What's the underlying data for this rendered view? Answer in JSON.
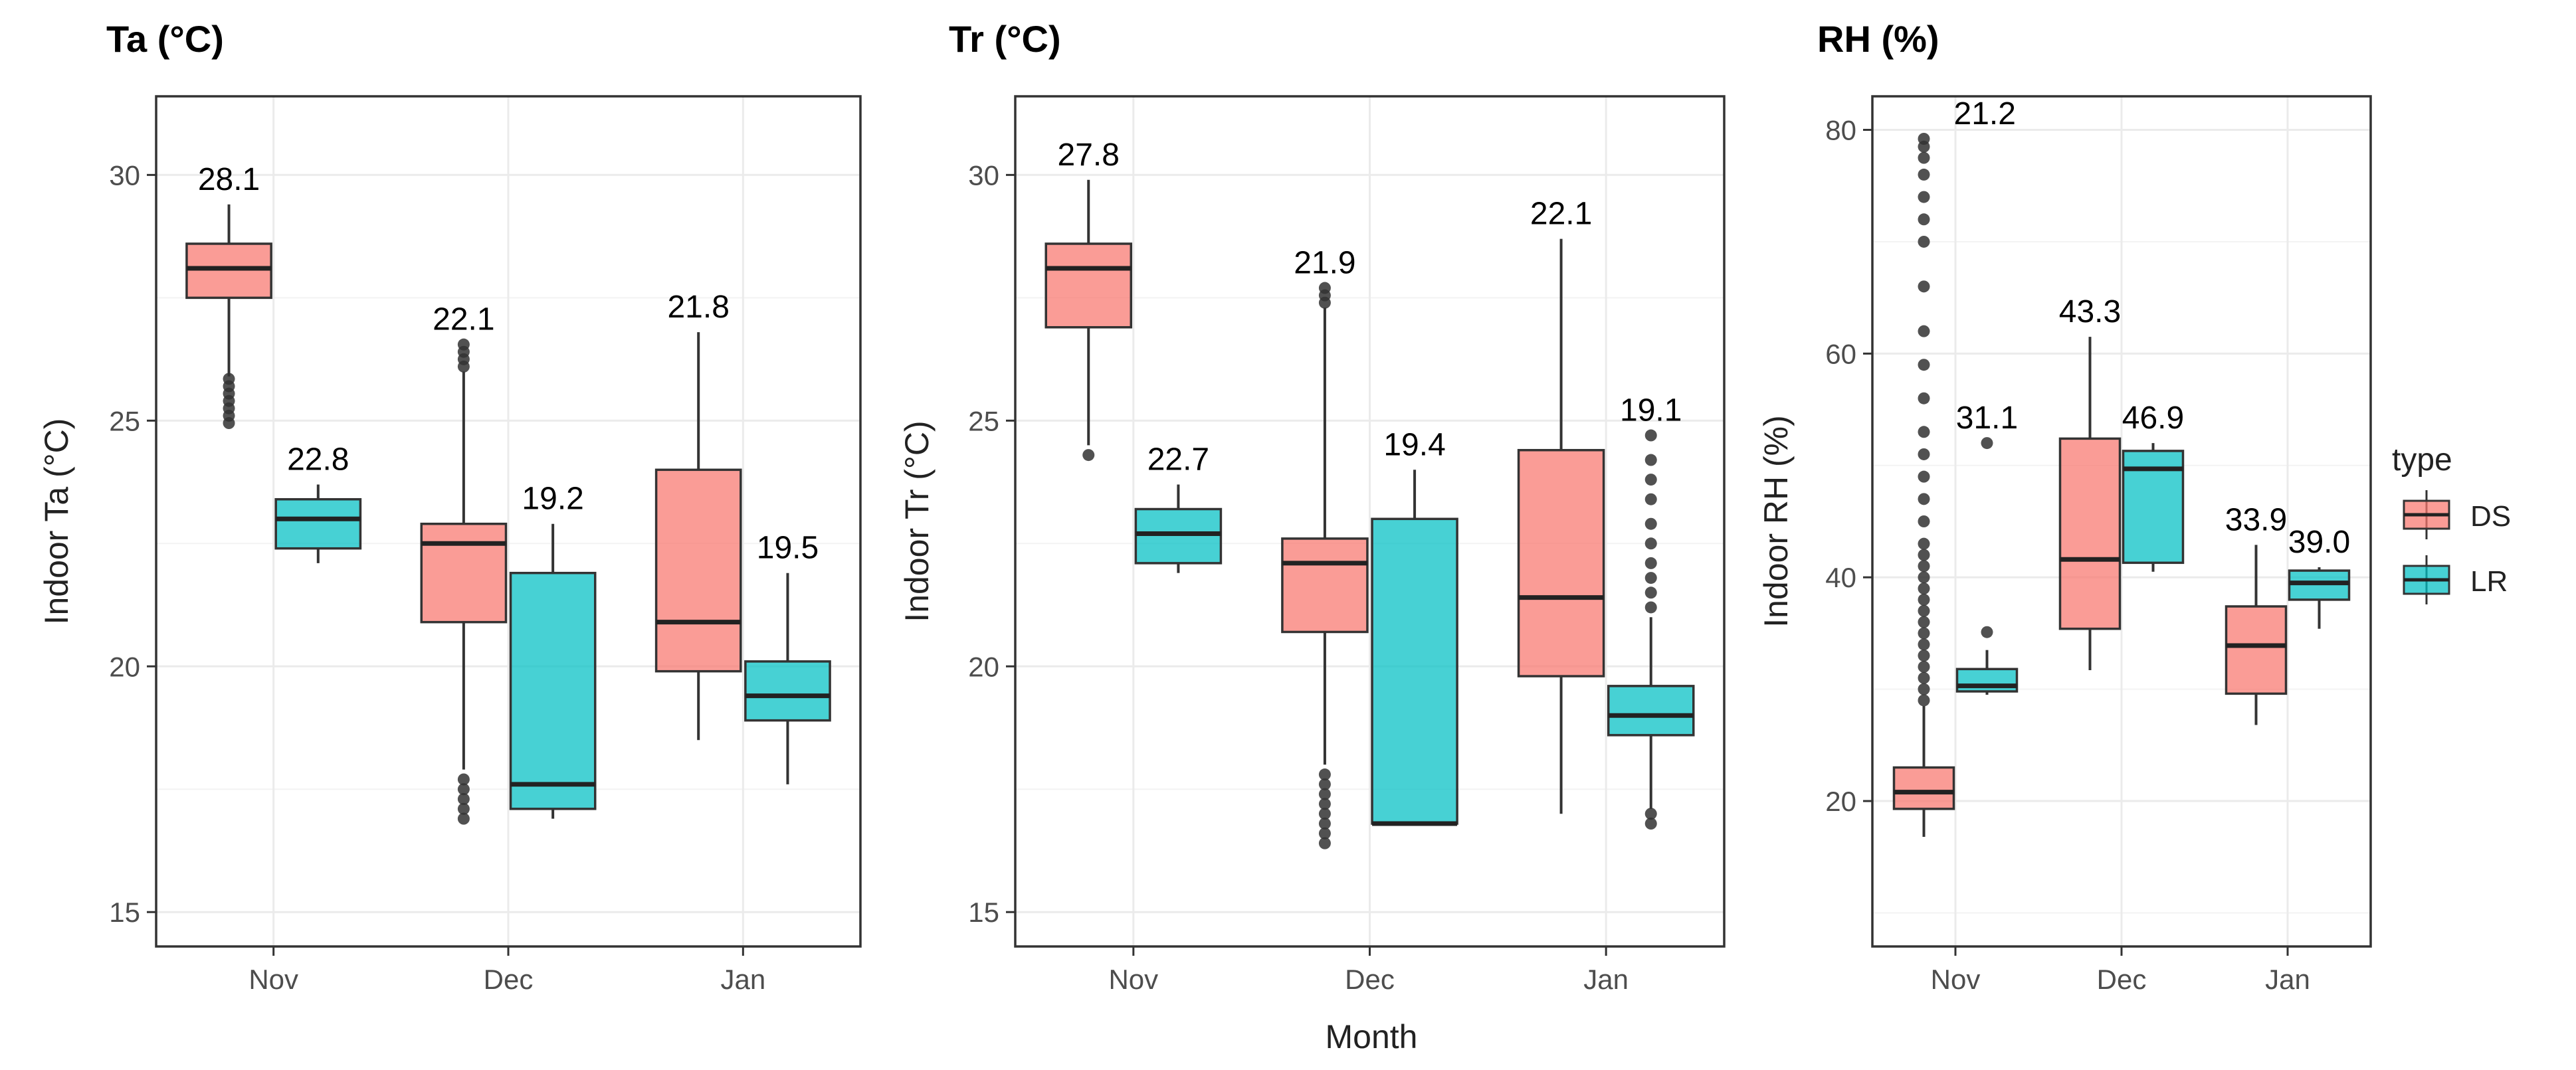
{
  "figure": {
    "shared_xlabel": "Month",
    "legend": {
      "title": "type",
      "position": "right"
    }
  },
  "chart_data": [
    {
      "type": "box",
      "title": "Ta (°C)",
      "xlabel": "",
      "ylabel": "Indoor Ta (°C)",
      "categories": [
        "Nov",
        "Dec",
        "Jan"
      ],
      "ylim": [
        14.3,
        31.6
      ],
      "yticks": [
        15,
        20,
        25,
        30
      ],
      "grid": true,
      "series": [
        {
          "name": "DS",
          "color": "#F8766D",
          "boxes": [
            {
              "q1": 27.5,
              "median": 28.1,
              "q3": 28.6,
              "whisker_low": 25.9,
              "whisker_high": 29.4,
              "label": "28.1",
              "outliers": [
                25.85,
                25.7,
                25.55,
                25.4,
                25.25,
                25.1,
                24.95
              ]
            },
            {
              "q1": 20.9,
              "median": 22.5,
              "q3": 22.9,
              "whisker_low": 17.9,
              "whisker_high": 26.0,
              "label": "22.1",
              "outliers": [
                26.1,
                26.25,
                26.4,
                26.55,
                17.7,
                17.5,
                17.3,
                17.1,
                16.9
              ]
            },
            {
              "q1": 19.9,
              "median": 20.9,
              "q3": 24.0,
              "whisker_low": 18.5,
              "whisker_high": 26.8,
              "label": "21.8",
              "outliers": []
            }
          ]
        },
        {
          "name": "LR",
          "color": "#00BFC4",
          "boxes": [
            {
              "q1": 22.4,
              "median": 23.0,
              "q3": 23.4,
              "whisker_low": 22.1,
              "whisker_high": 23.7,
              "label": "22.8",
              "outliers": []
            },
            {
              "q1": 17.1,
              "median": 17.6,
              "q3": 21.9,
              "whisker_low": 16.9,
              "whisker_high": 22.9,
              "label": "19.2",
              "outliers": []
            },
            {
              "q1": 18.9,
              "median": 19.4,
              "q3": 20.1,
              "whisker_low": 17.6,
              "whisker_high": 21.9,
              "label": "19.5",
              "outliers": []
            }
          ]
        }
      ]
    },
    {
      "type": "box",
      "title": "Tr (°C)",
      "xlabel": "",
      "ylabel": "Indoor Tr (°C)",
      "categories": [
        "Nov",
        "Dec",
        "Jan"
      ],
      "ylim": [
        14.3,
        31.6
      ],
      "yticks": [
        15,
        20,
        25,
        30
      ],
      "grid": true,
      "series": [
        {
          "name": "DS",
          "color": "#F8766D",
          "boxes": [
            {
              "q1": 26.9,
              "median": 28.1,
              "q3": 28.6,
              "whisker_low": 24.5,
              "whisker_high": 29.9,
              "label": "27.8",
              "outliers": [
                24.3
              ]
            },
            {
              "q1": 20.7,
              "median": 22.1,
              "q3": 22.6,
              "whisker_low": 18.0,
              "whisker_high": 27.3,
              "label": "21.9",
              "outliers": [
                27.4,
                27.55,
                27.7,
                17.8,
                17.6,
                17.4,
                17.2,
                17.0,
                16.8,
                16.6,
                16.4
              ]
            },
            {
              "q1": 19.8,
              "median": 21.4,
              "q3": 24.4,
              "whisker_low": 17.0,
              "whisker_high": 28.7,
              "label": "22.1",
              "outliers": []
            }
          ]
        },
        {
          "name": "LR",
          "color": "#00BFC4",
          "boxes": [
            {
              "q1": 22.1,
              "median": 22.7,
              "q3": 23.2,
              "whisker_low": 21.9,
              "whisker_high": 23.7,
              "label": "22.7",
              "outliers": []
            },
            {
              "q1": 16.8,
              "median": 16.8,
              "q3": 23.0,
              "whisker_low": 16.8,
              "whisker_high": 24.0,
              "label": "19.4",
              "outliers": []
            },
            {
              "q1": 18.6,
              "median": 19.0,
              "q3": 19.6,
              "whisker_low": 17.1,
              "whisker_high": 21.0,
              "label": "19.1",
              "outliers": [
                24.7,
                24.2,
                23.8,
                23.4,
                22.9,
                22.5,
                22.1,
                21.8,
                21.5,
                21.2,
                17.0,
                16.8
              ]
            }
          ]
        }
      ]
    },
    {
      "type": "box",
      "title": "RH (%)",
      "xlabel": "",
      "ylabel": "Indoor RH (%)",
      "categories": [
        "Nov",
        "Dec",
        "Jan"
      ],
      "ylim": [
        7,
        83
      ],
      "yticks": [
        20,
        40,
        60,
        80
      ],
      "grid": true,
      "series": [
        {
          "name": "DS",
          "color": "#F8766D",
          "boxes": [
            {
              "q1": 19.3,
              "median": 20.8,
              "q3": 23.0,
              "whisker_low": 16.8,
              "whisker_high": 28.5,
              "label": "21.2",
              "outliers": [
                29,
                30,
                31,
                32,
                33,
                34,
                35,
                36,
                37,
                38,
                39,
                40,
                41,
                42,
                43,
                45,
                47,
                49,
                51,
                53,
                56,
                59,
                62,
                66,
                70,
                72,
                74,
                76,
                77.5,
                78.5,
                79.2
              ]
            },
            {
              "q1": 35.4,
              "median": 41.6,
              "q3": 52.4,
              "whisker_low": 31.7,
              "whisker_high": 61.5,
              "label": "43.3",
              "outliers": []
            },
            {
              "q1": 29.6,
              "median": 33.9,
              "q3": 37.4,
              "whisker_low": 26.8,
              "whisker_high": 42.9,
              "label": "33.9",
              "outliers": []
            }
          ]
        },
        {
          "name": "LR",
          "color": "#00BFC4",
          "boxes": [
            {
              "q1": 29.8,
              "median": 30.3,
              "q3": 31.8,
              "whisker_low": 29.5,
              "whisker_high": 33.5,
              "label": "31.1",
              "outliers": [
                35.1,
                52.0
              ]
            },
            {
              "q1": 41.3,
              "median": 49.7,
              "q3": 51.3,
              "whisker_low": 40.5,
              "whisker_high": 52.0,
              "label": "46.9",
              "outliers": []
            },
            {
              "q1": 38.0,
              "median": 39.5,
              "q3": 40.6,
              "whisker_low": 35.4,
              "whisker_high": 40.9,
              "label": "39.0",
              "outliers": []
            }
          ]
        }
      ]
    }
  ]
}
